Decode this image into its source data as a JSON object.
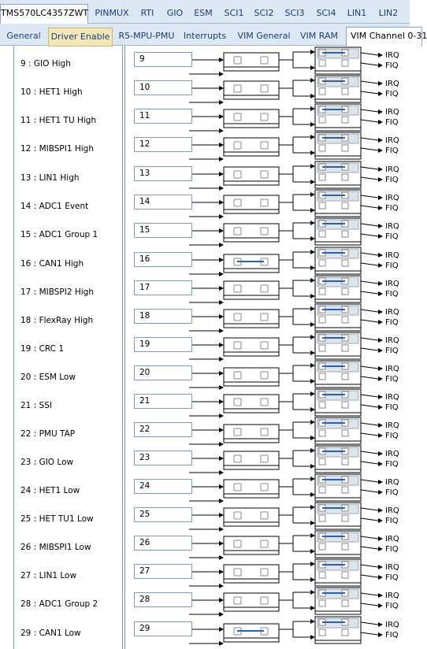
{
  "tabs_top": [
    {
      "label": "TMS570LC4357ZWT",
      "selected": true
    },
    {
      "label": "PINMUX"
    },
    {
      "label": "RTI"
    },
    {
      "label": "GIO"
    },
    {
      "label": "ESM"
    },
    {
      "label": "SCI1"
    },
    {
      "label": "SCI2"
    },
    {
      "label": "SCI3"
    },
    {
      "label": "SCI4"
    },
    {
      "label": "LIN1"
    },
    {
      "label": "LIN2"
    }
  ],
  "tabs_sub": [
    {
      "label": "General"
    },
    {
      "label": "Driver Enable",
      "highlight": true
    },
    {
      "label": "R5-MPU-PMU"
    },
    {
      "label": "Interrupts"
    },
    {
      "label": "VIM General"
    },
    {
      "label": "VIM RAM"
    },
    {
      "label": "VIM Channel 0-31",
      "selected": true
    }
  ],
  "irq_label": "IRQ",
  "fiq_label": "FIQ",
  "channels": [
    {
      "label": "9 : GIO High",
      "value": "9"
    },
    {
      "label": "10 : HET1 High",
      "value": "10"
    },
    {
      "label": "11 : HET1 TU High",
      "value": "11"
    },
    {
      "label": "12 : MIBSPI1 High",
      "value": "12"
    },
    {
      "label": "13 : LIN1 High",
      "value": "13"
    },
    {
      "label": "14 : ADC1 Event",
      "value": "14"
    },
    {
      "label": "15 : ADC1 Group 1",
      "value": "15"
    },
    {
      "label": "16 : CAN1 High",
      "value": "16"
    },
    {
      "label": "17 : MIBSPI2 High",
      "value": "17"
    },
    {
      "label": "18 : FlexRay High",
      "value": "18"
    },
    {
      "label": "19 : CRC 1",
      "value": "19"
    },
    {
      "label": "20 : ESM Low",
      "value": "20"
    },
    {
      "label": "21 : SSI",
      "value": "21"
    },
    {
      "label": "22 : PMU TAP",
      "value": "22"
    },
    {
      "label": "23 : GIO Low",
      "value": "23"
    },
    {
      "label": "24 : HET1 Low",
      "value": "24"
    },
    {
      "label": "25 : HET TU1 Low",
      "value": "25"
    },
    {
      "label": "26 : MIBSPI1 Low",
      "value": "26"
    },
    {
      "label": "27 : LIN1 Low",
      "value": "27"
    },
    {
      "label": "28 : ADC1 Group 2",
      "value": "28"
    },
    {
      "label": "29 : CAN1 Low",
      "value": "29"
    }
  ]
}
